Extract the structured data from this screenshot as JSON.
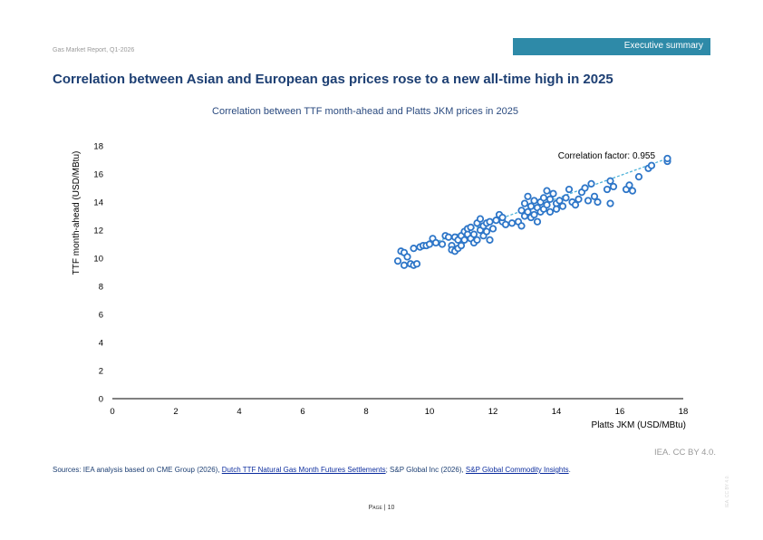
{
  "header": {
    "report_name": "Gas Market Report, Q1-2026",
    "section_tab": "Executive summary"
  },
  "page_title": "Correlation between Asian and European gas prices rose to a new all-time high in 2025",
  "chart_data": {
    "type": "scatter",
    "title": "Correlation between TTF month-ahead and Platts JKM prices in 2025",
    "xlabel": "Platts JKM (USD/MBtu)",
    "ylabel": "TTF month-ahead  (USD/MBtu)",
    "xlim": [
      0,
      18
    ],
    "ylim": [
      0,
      18
    ],
    "xticks": [
      "0",
      "2",
      "4",
      "6",
      "8",
      "10",
      "12",
      "14",
      "16",
      "18"
    ],
    "yticks": [
      "0",
      "2",
      "4",
      "6",
      "8",
      "10",
      "12",
      "14",
      "16",
      "18"
    ],
    "grid": false,
    "marker_color": "#2e76c8",
    "trendline_color": "#4fb3d9",
    "annotation": "Correlation factor: 0.955",
    "points": [
      [
        9.0,
        9.8
      ],
      [
        9.1,
        10.5
      ],
      [
        9.2,
        9.5
      ],
      [
        9.2,
        10.4
      ],
      [
        9.3,
        10.1
      ],
      [
        9.4,
        9.6
      ],
      [
        9.5,
        9.5
      ],
      [
        9.5,
        10.7
      ],
      [
        9.6,
        9.6
      ],
      [
        9.7,
        10.8
      ],
      [
        9.8,
        10.9
      ],
      [
        9.9,
        10.9
      ],
      [
        10.0,
        11.0
      ],
      [
        10.1,
        11.4
      ],
      [
        10.2,
        11.1
      ],
      [
        10.4,
        11.0
      ],
      [
        10.5,
        11.6
      ],
      [
        10.6,
        11.5
      ],
      [
        10.7,
        10.9
      ],
      [
        10.7,
        10.6
      ],
      [
        10.8,
        10.5
      ],
      [
        10.8,
        11.5
      ],
      [
        10.9,
        10.7
      ],
      [
        10.9,
        11.3
      ],
      [
        11.0,
        10.9
      ],
      [
        11.0,
        11.6
      ],
      [
        11.1,
        11.3
      ],
      [
        11.1,
        11.9
      ],
      [
        11.2,
        11.7
      ],
      [
        11.2,
        12.1
      ],
      [
        11.3,
        11.4
      ],
      [
        11.3,
        12.2
      ],
      [
        11.4,
        11.1
      ],
      [
        11.4,
        11.7
      ],
      [
        11.5,
        12.5
      ],
      [
        11.5,
        11.3
      ],
      [
        11.6,
        12.0
      ],
      [
        11.6,
        12.8
      ],
      [
        11.7,
        11.6
      ],
      [
        11.7,
        12.3
      ],
      [
        11.8,
        11.9
      ],
      [
        11.8,
        12.5
      ],
      [
        11.9,
        11.3
      ],
      [
        11.9,
        12.6
      ],
      [
        12.0,
        12.1
      ],
      [
        12.1,
        12.7
      ],
      [
        12.2,
        13.1
      ],
      [
        12.3,
        12.6
      ],
      [
        12.3,
        12.9
      ],
      [
        12.4,
        12.4
      ],
      [
        12.6,
        12.5
      ],
      [
        12.8,
        12.6
      ],
      [
        12.9,
        12.3
      ],
      [
        12.9,
        13.4
      ],
      [
        13.0,
        13.0
      ],
      [
        13.0,
        13.9
      ],
      [
        13.1,
        13.3
      ],
      [
        13.1,
        14.4
      ],
      [
        13.2,
        12.9
      ],
      [
        13.2,
        13.7
      ],
      [
        13.3,
        13.1
      ],
      [
        13.3,
        14.1
      ],
      [
        13.4,
        13.6
      ],
      [
        13.4,
        12.6
      ],
      [
        13.5,
        13.3
      ],
      [
        13.5,
        14.0
      ],
      [
        13.6,
        13.5
      ],
      [
        13.6,
        14.3
      ],
      [
        13.7,
        13.8
      ],
      [
        13.7,
        14.8
      ],
      [
        13.8,
        13.3
      ],
      [
        13.8,
        14.2
      ],
      [
        13.9,
        14.6
      ],
      [
        14.0,
        13.9
      ],
      [
        14.0,
        13.5
      ],
      [
        14.1,
        14.1
      ],
      [
        14.2,
        13.7
      ],
      [
        14.3,
        14.3
      ],
      [
        14.4,
        14.9
      ],
      [
        14.5,
        14.0
      ],
      [
        14.6,
        13.8
      ],
      [
        14.7,
        14.2
      ],
      [
        14.8,
        14.7
      ],
      [
        14.9,
        15.0
      ],
      [
        15.0,
        14.1
      ],
      [
        15.1,
        15.3
      ],
      [
        15.2,
        14.4
      ],
      [
        15.3,
        14.0
      ],
      [
        15.6,
        14.9
      ],
      [
        15.7,
        13.9
      ],
      [
        15.7,
        15.5
      ],
      [
        15.8,
        15.1
      ],
      [
        16.2,
        14.9
      ],
      [
        16.3,
        15.2
      ],
      [
        16.4,
        14.8
      ],
      [
        16.6,
        15.8
      ],
      [
        16.9,
        16.4
      ],
      [
        17.0,
        16.6
      ],
      [
        17.5,
        16.9
      ],
      [
        17.5,
        17.1
      ]
    ],
    "trendline": [
      [
        10.0,
        11.0
      ],
      [
        17.5,
        17.1
      ]
    ]
  },
  "license": "IEA. CC BY 4.0.",
  "sources": {
    "prefix": "Sources: IEA analysis based on CME Group (2026), ",
    "link1": "Dutch TTF Natural Gas Month Futures Settlements",
    "middle": "; S&P Global Inc (2026), ",
    "link2": "S&P Global Commodity Insights",
    "suffix": "."
  },
  "page_number": {
    "word": "Page",
    "separator": "|",
    "number": "10"
  },
  "side_mark": "IEA. CC BY 4.0."
}
